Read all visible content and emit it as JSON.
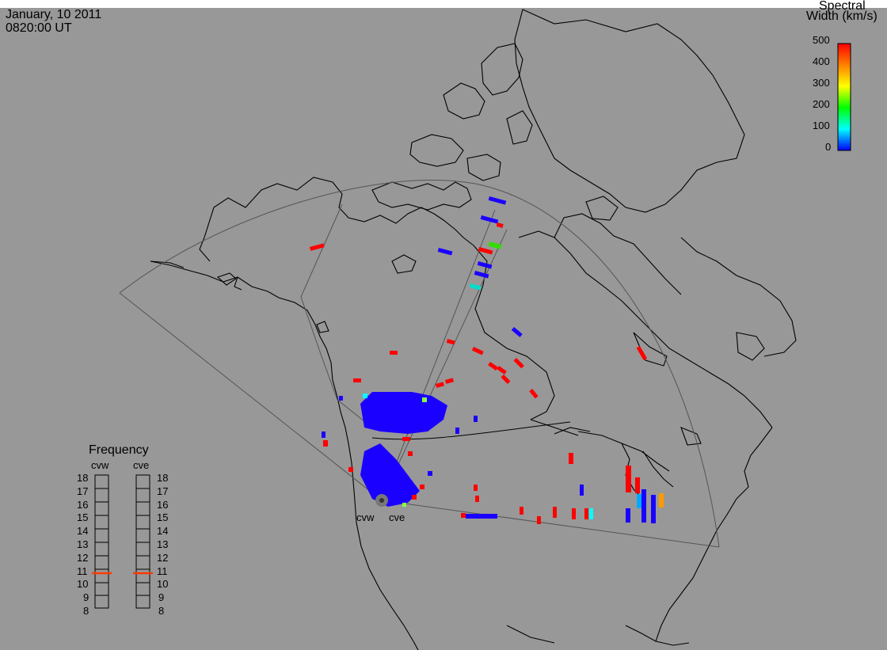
{
  "header": {
    "date": "January, 10 2011",
    "time": "0820:00 UT"
  },
  "colorbar": {
    "title_line1": "Spectral",
    "title_line2": "Width (km/s)",
    "ticks": [
      "500",
      "400",
      "300",
      "200",
      "100",
      "0"
    ],
    "colors": [
      "#0000ff",
      "#00ffff",
      "#00ff00",
      "#ffff00",
      "#ff8000",
      "#ff0000"
    ]
  },
  "radars": {
    "west_label": "cvw",
    "east_label": "cve"
  },
  "frequency_panel": {
    "title": "Frequency",
    "left_label": "cvw",
    "right_label": "cve",
    "levels": [
      "18",
      "17",
      "16",
      "15",
      "14",
      "13",
      "12",
      "11",
      "10",
      "9",
      "8"
    ],
    "cvw_value": 10.8,
    "cve_value": 10.8,
    "marker_color": "#ff3a00"
  },
  "colors": {
    "background": "#989898",
    "coast": "#000000",
    "fov": "#555555"
  }
}
